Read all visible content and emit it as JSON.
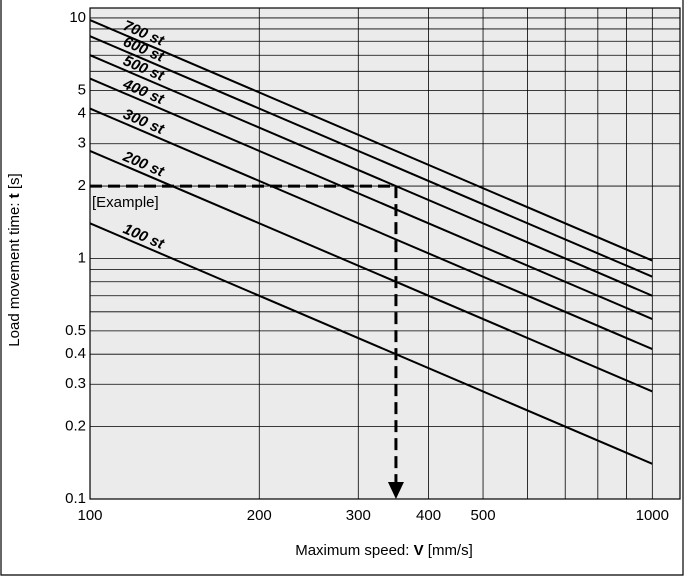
{
  "chart_data": {
    "type": "line",
    "xlabel": [
      "Maximum speed: ",
      "V",
      " [mm/s]"
    ],
    "ylabel": [
      "Load movement time: ",
      "t",
      " [s]"
    ],
    "xscale": "log",
    "yscale": "log",
    "xlim": [
      100,
      1120
    ],
    "ylim": [
      0.1,
      11
    ],
    "xticks": [
      100,
      200,
      300,
      400,
      500,
      1000
    ],
    "yticks": [
      0.1,
      0.2,
      0.3,
      0.4,
      0.5,
      1,
      2,
      3,
      4,
      5,
      10
    ],
    "xgrid": [
      100,
      200,
      300,
      400,
      500,
      600,
      700,
      800,
      900,
      1000
    ],
    "ygrid": [
      0.1,
      0.2,
      0.3,
      0.4,
      0.5,
      0.6,
      0.7,
      0.8,
      0.9,
      1,
      2,
      3,
      4,
      5,
      6,
      7,
      8,
      9,
      10
    ],
    "x": [
      100,
      1000
    ],
    "series": [
      {
        "name": "100 st",
        "color": "#000000",
        "values": [
          1.4,
          0.14
        ]
      },
      {
        "name": "200 st",
        "color": "#000000",
        "values": [
          2.8,
          0.28
        ]
      },
      {
        "name": "300 st",
        "color": "#000000",
        "values": [
          4.2,
          0.42
        ]
      },
      {
        "name": "400 st",
        "color": "#000000",
        "values": [
          5.6,
          0.56
        ]
      },
      {
        "name": "500 st",
        "color": "#000000",
        "values": [
          7,
          0.7
        ]
      },
      {
        "name": "600 st",
        "color": "#000000",
        "values": [
          8.4,
          0.84
        ]
      },
      {
        "name": "700 st",
        "color": "#000000",
        "values": [
          9.8,
          0.98
        ]
      }
    ],
    "example": {
      "label": "[Example]",
      "x": [
        100,
        350,
        350
      ],
      "values": [
        2,
        2,
        0.1
      ]
    }
  }
}
